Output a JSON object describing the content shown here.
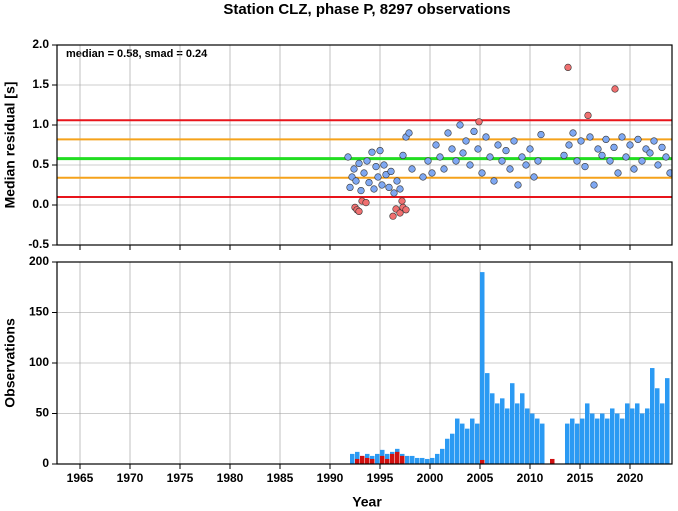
{
  "chart_data": [
    {
      "type": "scatter",
      "title": "Station CLZ, phase P, 8297 observations",
      "annotation": "median = 0.58, smad = 0.24",
      "y_label": "Median residual [s]",
      "xlim": [
        1962.7,
        2024.2
      ],
      "xticks": [
        1965,
        1970,
        1975,
        1980,
        1985,
        1990,
        1995,
        2000,
        2005,
        2010,
        2015,
        2020
      ],
      "ylim": [
        -0.5,
        2.0
      ],
      "yticks": [
        {
          "value": -0.5,
          "label": "-0.5"
        },
        {
          "value": 0,
          "label": "0.0"
        },
        {
          "value": 0.5,
          "label": "0.5"
        },
        {
          "value": 1,
          "label": "1.0"
        },
        {
          "value": 1.5,
          "label": "1.5"
        },
        {
          "value": 2,
          "label": "2.0"
        }
      ],
      "grid": true,
      "hlines": [
        {
          "value": 1.06,
          "color": "#e8141b"
        },
        {
          "value": 0.82,
          "color": "#f5a21b"
        },
        {
          "value": 0.58,
          "color": "#22dd22"
        },
        {
          "value": 0.34,
          "color": "#f5a21b"
        },
        {
          "value": 0.1,
          "color": "#e8141b"
        }
      ],
      "series": [
        {
          "color": "#7fa8f2",
          "x": [
            1991.8,
            1992.0,
            1992.2,
            1992.4,
            1992.6,
            1992.9,
            1993.1,
            1993.4,
            1993.7,
            1993.9,
            1994.2,
            1994.4,
            1994.6,
            1994.8,
            1995.0,
            1995.2,
            1995.4,
            1995.6,
            1995.9,
            1996.1,
            1996.4,
            1996.7,
            1997.0,
            1997.3,
            1997.6,
            1997.9,
            1998.2,
            1999.3,
            1999.8,
            2000.2,
            2000.6,
            2001.0,
            2001.4,
            2001.8,
            2002.2,
            2002.6,
            2003.0,
            2003.3,
            2003.6,
            2004.0,
            2004.4,
            2004.8,
            2005.2,
            2005.6,
            2006.0,
            2006.4,
            2006.8,
            2007.2,
            2007.6,
            2008.0,
            2008.4,
            2008.8,
            2009.2,
            2009.6,
            2010.0,
            2010.4,
            2010.8,
            2011.1,
            2013.4,
            2013.9,
            2014.3,
            2014.7,
            2015.1,
            2015.5,
            2016.0,
            2016.4,
            2016.8,
            2017.2,
            2017.6,
            2018.0,
            2018.4,
            2018.8,
            2019.2,
            2019.6,
            2020.0,
            2020.4,
            2020.8,
            2021.2,
            2021.6,
            2022.0,
            2022.4,
            2022.8,
            2023.2,
            2023.6,
            2024.0
          ],
          "values": [
            0.6,
            0.22,
            0.35,
            0.45,
            0.3,
            0.52,
            0.18,
            0.4,
            0.55,
            0.28,
            0.66,
            0.2,
            0.48,
            0.35,
            0.68,
            0.25,
            0.5,
            0.38,
            0.22,
            0.42,
            0.15,
            0.3,
            0.2,
            0.62,
            0.85,
            0.9,
            0.45,
            0.35,
            0.55,
            0.4,
            0.75,
            0.6,
            0.45,
            0.9,
            0.7,
            0.55,
            1.0,
            0.65,
            0.8,
            0.5,
            0.92,
            0.7,
            0.4,
            0.85,
            0.6,
            0.3,
            0.75,
            0.55,
            0.68,
            0.45,
            0.8,
            0.25,
            0.6,
            0.5,
            0.7,
            0.35,
            0.55,
            0.88,
            0.62,
            0.75,
            0.9,
            0.55,
            0.8,
            0.48,
            0.85,
            0.25,
            0.7,
            0.62,
            0.82,
            0.55,
            0.72,
            0.4,
            0.85,
            0.6,
            0.75,
            0.45,
            0.82,
            0.55,
            0.7,
            0.65,
            0.8,
            0.5,
            0.72,
            0.6,
            0.4
          ]
        },
        {
          "color": "#f07070",
          "x": [
            1992.5,
            1992.7,
            1992.9,
            1993.2,
            1993.6,
            1996.3,
            1996.6,
            1997.0,
            1997.2,
            1997.3,
            1997.6,
            2004.9,
            2013.8,
            2015.8,
            2018.5
          ],
          "values": [
            -0.03,
            -0.06,
            -0.08,
            0.05,
            0.03,
            -0.14,
            -0.05,
            -0.1,
            0.05,
            -0.03,
            -0.06,
            1.04,
            1.72,
            1.12,
            1.45
          ]
        }
      ]
    },
    {
      "type": "histogram",
      "y_label": "Observations",
      "x_label": "Year",
      "xlim": [
        1962.7,
        2024.2
      ],
      "xticks": [
        1965,
        1970,
        1975,
        1980,
        1985,
        1990,
        1995,
        2000,
        2005,
        2010,
        2015,
        2020
      ],
      "ylim": [
        0,
        200
      ],
      "yticks": [
        0,
        50,
        100,
        150,
        200
      ],
      "grid": true,
      "bins": [
        1992.0,
        1992.5,
        1993.0,
        1993.5,
        1994.0,
        1994.5,
        1995.0,
        1995.5,
        1996.0,
        1996.5,
        1997.0,
        1997.5,
        1998.0,
        1998.5,
        1999.0,
        1999.5,
        2000.0,
        2000.5,
        2001.0,
        2001.5,
        2002.0,
        2002.5,
        2003.0,
        2003.5,
        2004.0,
        2004.5,
        2005.0,
        2005.5,
        2006.0,
        2006.5,
        2007.0,
        2007.5,
        2008.0,
        2008.5,
        2009.0,
        2009.5,
        2010.0,
        2010.5,
        2011.0,
        2011.5,
        2012.0,
        2012.5,
        2013.0,
        2013.5,
        2014.0,
        2014.5,
        2015.0,
        2015.5,
        2016.0,
        2016.5,
        2017.0,
        2017.5,
        2018.0,
        2018.5,
        2019.0,
        2019.5,
        2020.0,
        2020.5,
        2021.0,
        2021.5,
        2022.0,
        2022.5,
        2023.0,
        2023.5,
        2024.0
      ],
      "series": [
        {
          "color": "#2b9af3",
          "values": [
            10,
            12,
            8,
            10,
            8,
            10,
            14,
            10,
            12,
            15,
            10,
            8,
            8,
            6,
            6,
            5,
            6,
            10,
            15,
            25,
            30,
            45,
            40,
            35,
            45,
            40,
            190,
            90,
            70,
            60,
            65,
            55,
            80,
            60,
            70,
            55,
            50,
            45,
            40,
            0,
            0,
            0,
            0,
            40,
            45,
            40,
            45,
            60,
            50,
            45,
            50,
            45,
            55,
            50,
            45,
            60,
            55,
            60,
            50,
            55,
            95,
            75,
            60,
            85
          ]
        },
        {
          "color": "#d01010",
          "values": [
            0,
            5,
            8,
            6,
            5,
            0,
            8,
            5,
            10,
            12,
            8,
            0,
            0,
            0,
            0,
            0,
            0,
            0,
            0,
            0,
            0,
            0,
            0,
            0,
            0,
            0,
            4,
            0,
            0,
            0,
            0,
            0,
            0,
            0,
            0,
            0,
            0,
            0,
            0,
            0,
            5,
            0,
            0,
            0,
            0,
            0,
            0,
            0,
            0,
            0,
            0,
            0,
            0,
            0,
            0,
            0,
            0,
            0,
            0,
            0,
            0,
            0,
            0,
            0
          ]
        }
      ]
    }
  ]
}
